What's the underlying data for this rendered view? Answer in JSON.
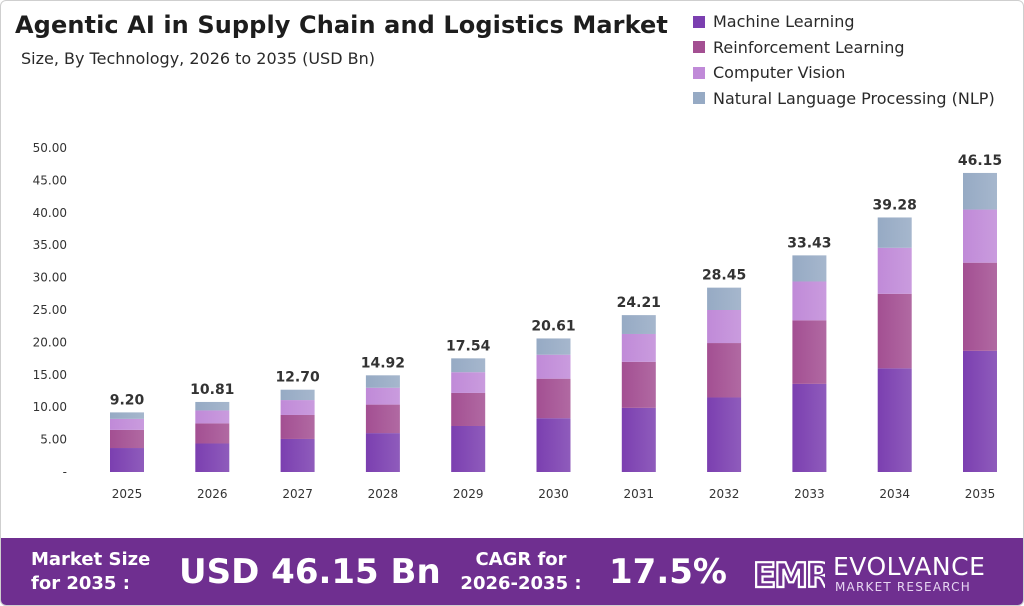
{
  "header": {
    "title": "Agentic AI in Supply Chain and Logistics Market",
    "subtitle": "Size, By Technology, 2026 to 2035 (USD Bn)"
  },
  "legend": [
    {
      "label": "Machine Learning",
      "color": "#7b3fb0"
    },
    {
      "label": "Reinforcement Learning",
      "color": "#a34f92"
    },
    {
      "label": "Computer Vision",
      "color": "#c08ad8"
    },
    {
      "label": "Natural Language Processing (NLP)",
      "color": "#96aac4"
    }
  ],
  "chart_data": {
    "type": "bar",
    "stacked": true,
    "categories": [
      "2025",
      "2026",
      "2027",
      "2028",
      "2029",
      "2030",
      "2031",
      "2032",
      "2033",
      "2034",
      "2035"
    ],
    "series": [
      {
        "name": "Machine Learning",
        "color": "#7b3fb0",
        "values": [
          3.7,
          4.4,
          5.1,
          6.0,
          7.1,
          8.3,
          9.9,
          11.5,
          13.6,
          16.0,
          18.7
        ]
      },
      {
        "name": "Reinforcement Learning",
        "color": "#a34f92",
        "values": [
          2.8,
          3.1,
          3.7,
          4.4,
          5.1,
          6.1,
          7.1,
          8.4,
          9.8,
          11.5,
          13.6
        ]
      },
      {
        "name": "Computer Vision",
        "color": "#c08ad8",
        "values": [
          1.7,
          2.0,
          2.3,
          2.6,
          3.2,
          3.7,
          4.3,
          5.1,
          6.0,
          7.1,
          8.2
        ]
      },
      {
        "name": "Natural Language Processing (NLP)",
        "color": "#96aac4",
        "values": [
          1.0,
          1.31,
          1.6,
          1.92,
          2.14,
          2.51,
          2.91,
          3.45,
          4.03,
          4.68,
          5.65
        ]
      }
    ],
    "totals": [
      9.2,
      10.81,
      12.7,
      14.92,
      17.54,
      20.61,
      24.21,
      28.45,
      33.43,
      39.28,
      46.15
    ],
    "total_labels": [
      "9.20",
      "10.81",
      "12.70",
      "14.92",
      "17.54",
      "20.61",
      "24.21",
      "28.45",
      "33.43",
      "39.28",
      "46.15"
    ],
    "y_ticks": [
      "-",
      "5.00",
      "10.00",
      "15.00",
      "20.00",
      "25.00",
      "30.00",
      "35.00",
      "40.00",
      "45.00",
      "50.00"
    ],
    "ylim": [
      0,
      50
    ],
    "grid": false,
    "legend_position": "top-right",
    "xlabel": "",
    "ylabel": ""
  },
  "footer": {
    "market_size_label": "Market Size for 2035 :",
    "market_size_value": "USD 46.15 Bn",
    "cagr_label": "CAGR for 2026-2035 :",
    "cagr_value": "17.5%",
    "brand_name": "EVOLVANCE",
    "brand_sub": "MARKET RESEARCH",
    "logo_text": "EMR"
  }
}
